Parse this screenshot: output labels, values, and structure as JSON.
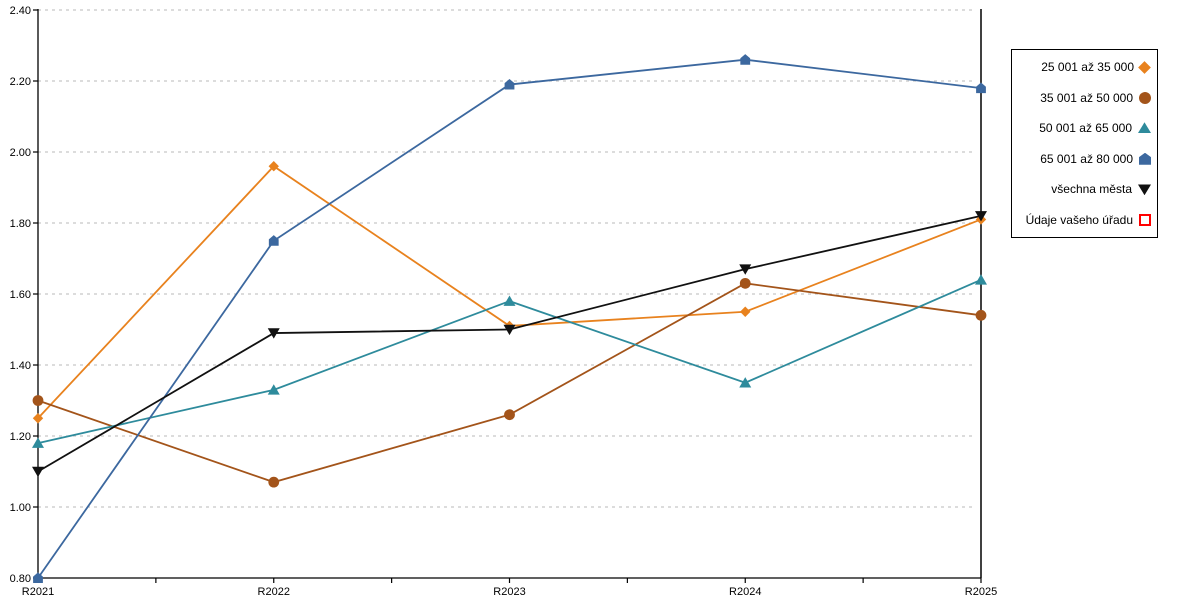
{
  "chart_data": {
    "type": "line",
    "title": "",
    "xlabel": "",
    "ylabel": "",
    "categories": [
      "R2021",
      "R2022",
      "R2023",
      "R2024",
      "R2025"
    ],
    "y_ticks": [
      "0.80",
      "1.00",
      "1.20",
      "1.40",
      "1.60",
      "1.80",
      "2.00",
      "2.20",
      "2.40"
    ],
    "ylim": [
      0.8,
      2.4
    ],
    "grid": "horizontal-dashed",
    "legend_position": "outside-right-top",
    "series": [
      {
        "name": "25 001 až 35 000",
        "marker": "diamond",
        "color": "#e8821e",
        "values": [
          1.25,
          1.96,
          1.51,
          1.55,
          1.81
        ]
      },
      {
        "name": "35 001 až 50 000",
        "marker": "circle",
        "color": "#a3541a",
        "values": [
          1.3,
          1.07,
          1.26,
          1.63,
          1.54
        ]
      },
      {
        "name": "50 001 až 65 000",
        "marker": "triangle-up",
        "color": "#2e8b9c",
        "values": [
          1.18,
          1.33,
          1.58,
          1.35,
          1.64
        ]
      },
      {
        "name": "65 001 až 80 000",
        "marker": "house",
        "color": "#3c689f",
        "values": [
          0.8,
          1.75,
          2.19,
          2.26,
          2.18
        ]
      },
      {
        "name": "všechna města",
        "marker": "triangle-down",
        "color": "#111111",
        "values": [
          1.1,
          1.49,
          1.5,
          1.67,
          1.82
        ]
      },
      {
        "name": "Údaje vašeho úřadu",
        "marker": "open-square",
        "color": "#ff0000",
        "values": []
      }
    ],
    "colors": {
      "grid": "#c6c6c6",
      "axis": "#000000",
      "background": "#ffffff"
    }
  }
}
